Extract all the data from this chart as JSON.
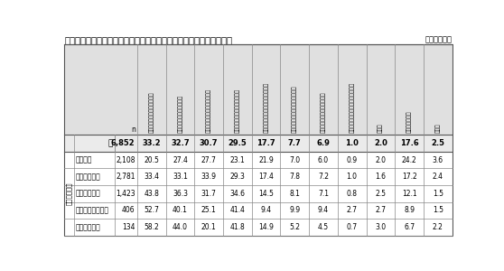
{
  "title": "図表１－１６　人材育成・能力開発における現在の課題（複数回答）",
  "unit": "（単位：％）",
  "col_headers": [
    "指導する人材が不足している",
    "人材育成を行う時間がない",
    "継えがいのある人材が集まらな",
    "人材を育成しても辞めてしまう",
    "育成を行うための金錠的余裕がない",
    "適切な教育訓練機関がわからない",
    "人材育成の方法がわからない",
    "技術革新や業務変更が頻繁になった",
    "その他",
    "特に課題はない",
    "無回答"
  ],
  "row_label_main": "従業員規模別",
  "row_labels": [
    "計",
    "９人以下",
    "１０～２９人",
    "３０～９９人",
    "１００～２９９人",
    "３００人以上"
  ],
  "n_values": [
    "6,852",
    "2,108",
    "2,781",
    "1,423",
    "406",
    "134"
  ],
  "data": [
    [
      33.2,
      32.7,
      30.7,
      29.5,
      17.7,
      7.7,
      6.9,
      1.0,
      2.0,
      17.6,
      2.5
    ],
    [
      20.5,
      27.4,
      27.7,
      23.1,
      21.9,
      7.0,
      6.0,
      0.9,
      2.0,
      24.2,
      3.6
    ],
    [
      33.4,
      33.1,
      33.9,
      29.3,
      17.4,
      7.8,
      7.2,
      1.0,
      1.6,
      17.2,
      2.4
    ],
    [
      43.8,
      36.3,
      31.7,
      34.6,
      14.5,
      8.1,
      7.1,
      0.8,
      2.5,
      12.1,
      1.5
    ],
    [
      52.7,
      40.1,
      25.1,
      41.4,
      9.4,
      9.9,
      9.4,
      2.7,
      2.7,
      8.9,
      1.5
    ],
    [
      58.2,
      44.0,
      20.1,
      41.8,
      14.9,
      5.2,
      4.5,
      0.7,
      3.0,
      6.7,
      2.2
    ]
  ],
  "bg_header": "#e0e0e0",
  "bg_total_row": "#ebebeb",
  "bg_white": "#ffffff",
  "border_color": "#888888",
  "text_color": "#000000"
}
